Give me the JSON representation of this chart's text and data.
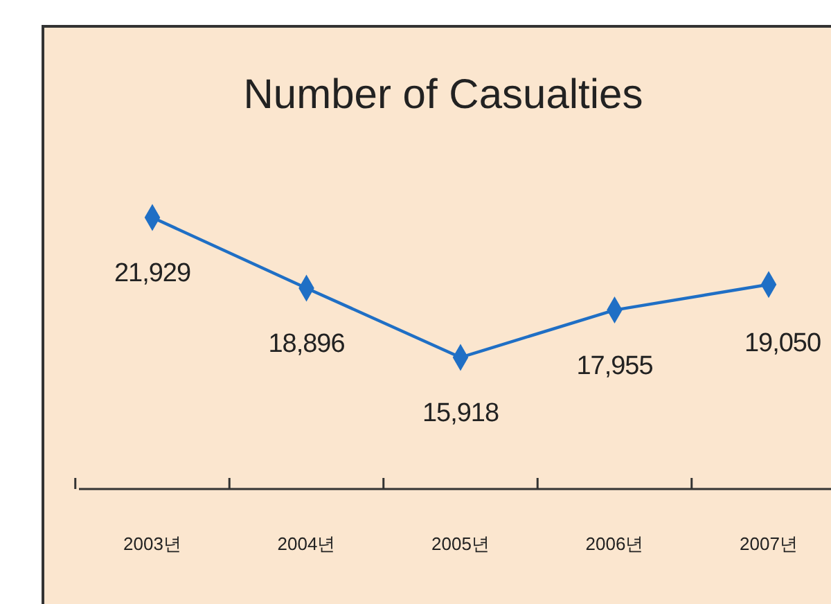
{
  "chart_data": {
    "type": "line",
    "title": "Number of Casualties",
    "categories": [
      "2003년",
      "2004년",
      "2005년",
      "2006년",
      "2007년"
    ],
    "series": [
      {
        "color": "#1f6fc5",
        "values": [
          21929,
          18896,
          15918,
          17955,
          19050
        ],
        "value_labels": [
          "21,929",
          "18,896",
          "15,918",
          "17,955",
          "19,050"
        ]
      }
    ],
    "marker": "diamond",
    "tick_labels": "x"
  }
}
